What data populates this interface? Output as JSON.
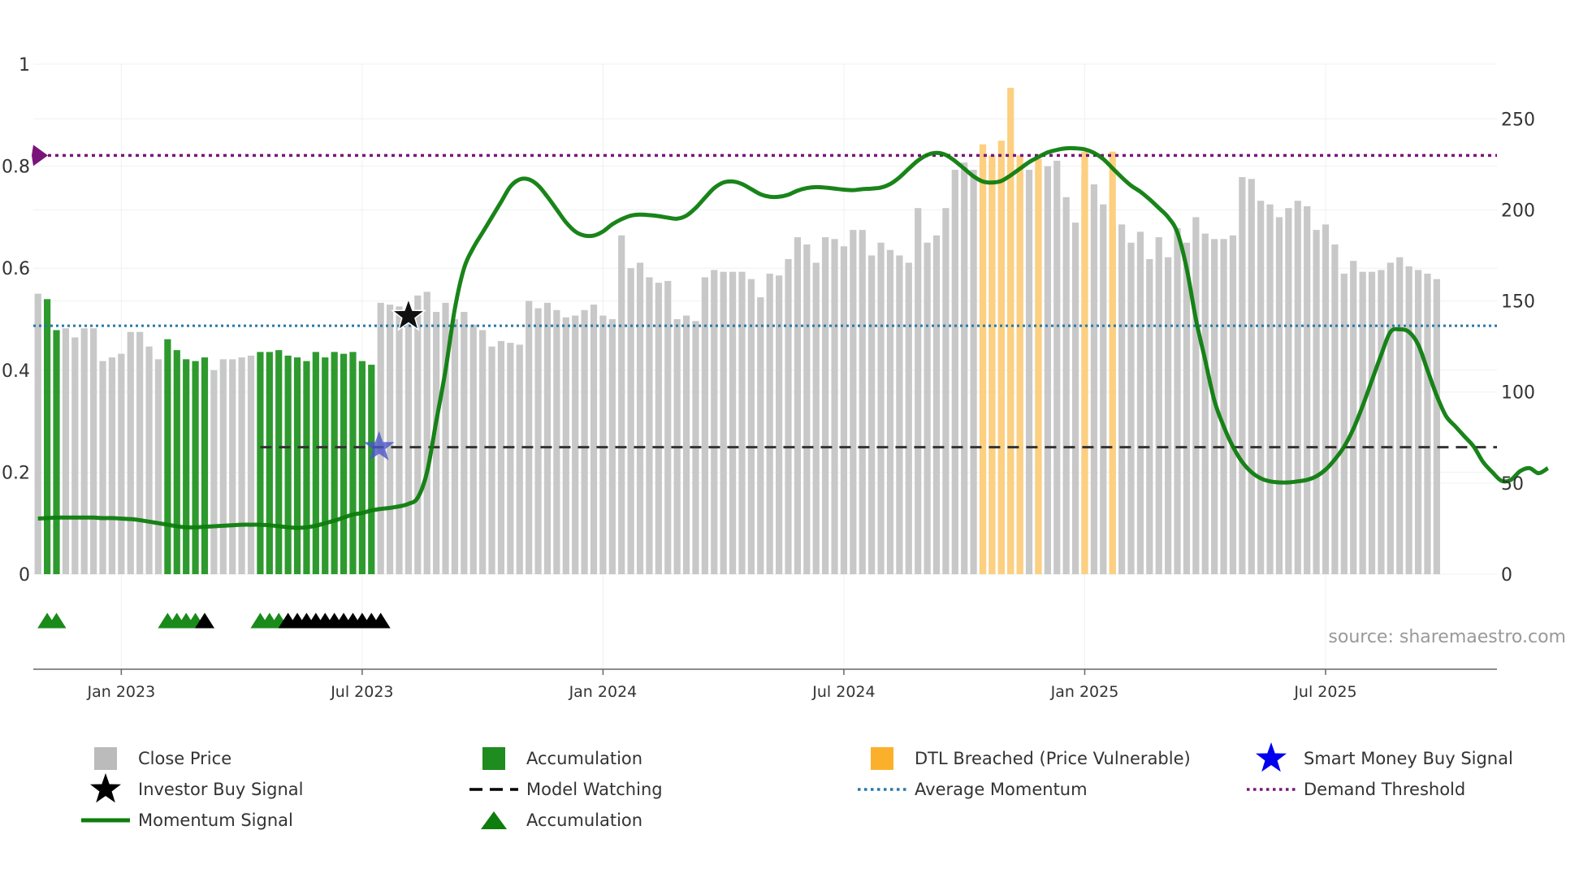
{
  "chart_data": {
    "type": "bar",
    "title": "",
    "source": "source: sharemaestro.com",
    "y_left": {
      "range": [
        0,
        1
      ],
      "ticks": [
        "0",
        "0.2",
        "0.4",
        "0.6",
        "0.8",
        "1"
      ]
    },
    "y_right": {
      "range": [
        0,
        280
      ],
      "ticks": [
        "0",
        "50",
        "100",
        "150",
        "200",
        "250"
      ]
    },
    "x_axis": {
      "range_week_index": [
        -0.5,
        157.5
      ],
      "ticks": [
        {
          "label": "Jan 2023",
          "week": 9
        },
        {
          "label": "Jul 2023",
          "week": 35
        },
        {
          "label": "Jan 2024",
          "week": 61
        },
        {
          "label": "Jul 2024",
          "week": 87
        },
        {
          "label": "Jan 2025",
          "week": 113
        },
        {
          "label": "Jul 2025",
          "week": 139
        }
      ]
    },
    "colors": {
      "close": "#c8c8c8",
      "accumulation": "#2e9a2e",
      "dtl": "#fcd080",
      "momentum": "#0d7d0d",
      "average": "#2878a8",
      "demand": "#7a147a",
      "watching": "#333333",
      "investor_star": "#111111",
      "smart_money_star": "#4a55c8",
      "tri_green": "#1a8a1a",
      "tri_black": "#000000"
    },
    "close_prices": [
      154,
      151,
      134,
      135,
      130,
      135,
      135,
      117,
      119,
      121,
      133,
      133,
      125,
      118,
      129,
      123,
      118,
      117,
      119,
      112,
      118,
      118,
      119,
      120,
      122,
      122,
      123,
      120,
      119,
      117,
      122,
      119,
      122,
      121,
      122,
      117,
      115,
      149,
      148,
      147,
      143,
      153,
      155,
      144,
      149,
      140,
      144,
      137,
      134,
      125,
      128,
      127,
      126,
      150,
      146,
      149,
      145,
      141,
      142,
      145,
      148,
      142,
      140,
      186,
      168,
      171,
      163,
      160,
      161,
      140,
      142,
      139,
      163,
      167,
      166,
      166,
      166,
      162,
      152,
      165,
      164,
      173,
      185,
      181,
      171,
      185,
      184,
      180,
      189,
      189,
      175,
      182,
      178,
      175,
      171,
      201,
      182,
      186,
      201,
      222,
      226,
      222,
      227,
      226,
      222,
      225,
      224,
      222,
      223,
      224,
      227,
      207,
      193,
      220,
      214,
      203,
      193,
      192,
      182,
      188,
      173,
      185,
      174,
      190,
      182,
      196,
      187,
      184,
      184,
      186,
      218,
      217,
      205,
      203,
      196,
      201,
      205,
      202,
      189,
      192,
      181,
      165,
      172,
      166,
      166,
      167,
      171,
      174,
      169,
      167,
      165,
      162
    ],
    "accumulation_weeks": [
      1,
      2,
      14,
      15,
      16,
      17,
      18,
      24,
      25,
      26,
      27,
      28,
      29,
      30,
      31,
      32,
      33,
      34,
      35,
      36
    ],
    "dtl_weeks": [
      102,
      103,
      104,
      105,
      106,
      108,
      113,
      116
    ],
    "dtl_prices": [
      236,
      230,
      238,
      267,
      230,
      228,
      232,
      232
    ],
    "momentum_signal": [
      0.109,
      0.11,
      0.111,
      0.111,
      0.111,
      0.111,
      0.111,
      0.11,
      0.11,
      0.109,
      0.108,
      0.106,
      0.103,
      0.1,
      0.097,
      0.094,
      0.092,
      0.092,
      0.093,
      0.094,
      0.095,
      0.096,
      0.097,
      0.097,
      0.097,
      0.096,
      0.094,
      0.092,
      0.091,
      0.092,
      0.095,
      0.1,
      0.105,
      0.111,
      0.117,
      0.12,
      0.125,
      0.128,
      0.13,
      0.133,
      0.138,
      0.15,
      0.2,
      0.3,
      0.4,
      0.52,
      0.6,
      0.64,
      0.67,
      0.7,
      0.73,
      0.76,
      0.774,
      0.774,
      0.762,
      0.74,
      0.715,
      0.69,
      0.672,
      0.664,
      0.664,
      0.672,
      0.686,
      0.696,
      0.703,
      0.705,
      0.704,
      0.702,
      0.699,
      0.697,
      0.703,
      0.718,
      0.738,
      0.757,
      0.768,
      0.77,
      0.765,
      0.755,
      0.745,
      0.74,
      0.74,
      0.744,
      0.752,
      0.757,
      0.759,
      0.758,
      0.756,
      0.754,
      0.753,
      0.755,
      0.756,
      0.758,
      0.765,
      0.778,
      0.795,
      0.811,
      0.822,
      0.826,
      0.822,
      0.81,
      0.795,
      0.78,
      0.77,
      0.768,
      0.771,
      0.782,
      0.795,
      0.808,
      0.818,
      0.827,
      0.832,
      0.835,
      0.835,
      0.833,
      0.826,
      0.814,
      0.796,
      0.778,
      0.762,
      0.75,
      0.735,
      0.718,
      0.7,
      0.67,
      0.6,
      0.5,
      0.42,
      0.34,
      0.29,
      0.25,
      0.22,
      0.2,
      0.188,
      0.182,
      0.18,
      0.18,
      0.182,
      0.185,
      0.192,
      0.205,
      0.225,
      0.25,
      0.285,
      0.33,
      0.38,
      0.43,
      0.475,
      0.48,
      0.475,
      0.45,
      0.4,
      0.35,
      0.31,
      0.29,
      0.27,
      0.25,
      0.22,
      0.2,
      0.183,
      0.185,
      0.202,
      0.208,
      0.198,
      0.208
    ],
    "average_momentum": 0.487,
    "demand_threshold": 0.821,
    "model_watching": {
      "value": 0.249,
      "from_week": 24
    },
    "investor_buy_signal": {
      "week": 40,
      "value": 0.5
    },
    "smart_money_buy_signal": {
      "week": 37,
      "value": 0.249
    },
    "accumulation_triangles": [
      {
        "week": 1,
        "color": "green"
      },
      {
        "week": 2,
        "color": "green"
      },
      {
        "week": 14,
        "color": "green"
      },
      {
        "week": 15,
        "color": "green"
      },
      {
        "week": 16,
        "color": "green"
      },
      {
        "week": 17,
        "color": "green"
      },
      {
        "week": 18,
        "color": "black"
      },
      {
        "week": 24,
        "color": "green"
      },
      {
        "week": 25,
        "color": "green"
      },
      {
        "week": 26,
        "color": "green"
      },
      {
        "week": 27,
        "color": "black"
      },
      {
        "week": 28,
        "color": "black"
      },
      {
        "week": 29,
        "color": "black"
      },
      {
        "week": 30,
        "color": "black"
      },
      {
        "week": 31,
        "color": "black"
      },
      {
        "week": 32,
        "color": "black"
      },
      {
        "week": 33,
        "color": "black"
      },
      {
        "week": 34,
        "color": "black"
      },
      {
        "week": 35,
        "color": "black"
      },
      {
        "week": 36,
        "color": "black"
      },
      {
        "week": 37,
        "color": "black"
      }
    ],
    "legend": [
      {
        "label": "Close Price",
        "marker": "square",
        "color": "#bbbbbb"
      },
      {
        "label": "Accumulation",
        "marker": "square",
        "color": "#1e8c1e"
      },
      {
        "label": "DTL Breached (Price Vulnerable)",
        "marker": "square",
        "color": "#fbb02c"
      },
      {
        "label": "Smart Money Buy Signal",
        "marker": "star",
        "color": "#0000ee"
      },
      {
        "label": "Investor Buy Signal",
        "marker": "star",
        "color": "#000000"
      },
      {
        "label": "Model Watching",
        "marker": "dashed",
        "color": "#000000"
      },
      {
        "label": "Average Momentum",
        "marker": "dotted",
        "color": "#2878a8"
      },
      {
        "label": "Demand Threshold",
        "marker": "dotted",
        "color": "#7a147a"
      },
      {
        "label": "Momentum Signal",
        "marker": "line",
        "color": "#0d7d0d"
      },
      {
        "label": "Accumulation",
        "marker": "triangle",
        "color": "#0d7d0d"
      }
    ]
  }
}
